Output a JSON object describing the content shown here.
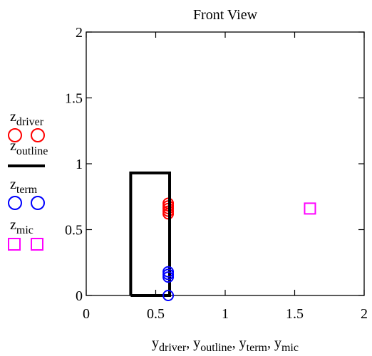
{
  "chart_data": {
    "type": "scatter",
    "title": "Front View",
    "xlim": [
      0,
      2
    ],
    "ylim": [
      0,
      2
    ],
    "x_ticks": [
      "0",
      "0.5",
      "1",
      "1.5",
      "2"
    ],
    "y_ticks": [
      "0",
      "0.5",
      "1",
      "1.5",
      "2"
    ],
    "grid": false,
    "legend_position": "left",
    "xlabel_parts": [
      {
        "base": "y",
        "sub": "driver"
      },
      {
        "base": "y",
        "sub": "outline"
      },
      {
        "base": "y",
        "sub": "term"
      },
      {
        "base": "y",
        "sub": "mic"
      }
    ],
    "series": [
      {
        "name_base": "z",
        "name_sub": "driver",
        "marker": "circle",
        "color": "#ff0000",
        "points": [
          [
            0.59,
            0.62
          ],
          [
            0.59,
            0.64
          ],
          [
            0.59,
            0.66
          ],
          [
            0.59,
            0.68
          ],
          [
            0.59,
            0.7
          ]
        ]
      },
      {
        "name_base": "z",
        "name_sub": "outline",
        "marker": "line",
        "color": "#000000",
        "points": [
          [
            0.32,
            0
          ],
          [
            0.32,
            0.93
          ],
          [
            0.6,
            0.93
          ],
          [
            0.6,
            0
          ],
          [
            0.32,
            0
          ]
        ]
      },
      {
        "name_base": "z",
        "name_sub": "term",
        "marker": "circle",
        "color": "#0000ff",
        "points": [
          [
            0.59,
            0
          ],
          [
            0.59,
            0.14
          ],
          [
            0.59,
            0.16
          ],
          [
            0.59,
            0.18
          ]
        ]
      },
      {
        "name_base": "z",
        "name_sub": "mic",
        "marker": "square",
        "color": "#ff00ff",
        "points": [
          [
            1.61,
            0.66
          ]
        ]
      }
    ]
  }
}
